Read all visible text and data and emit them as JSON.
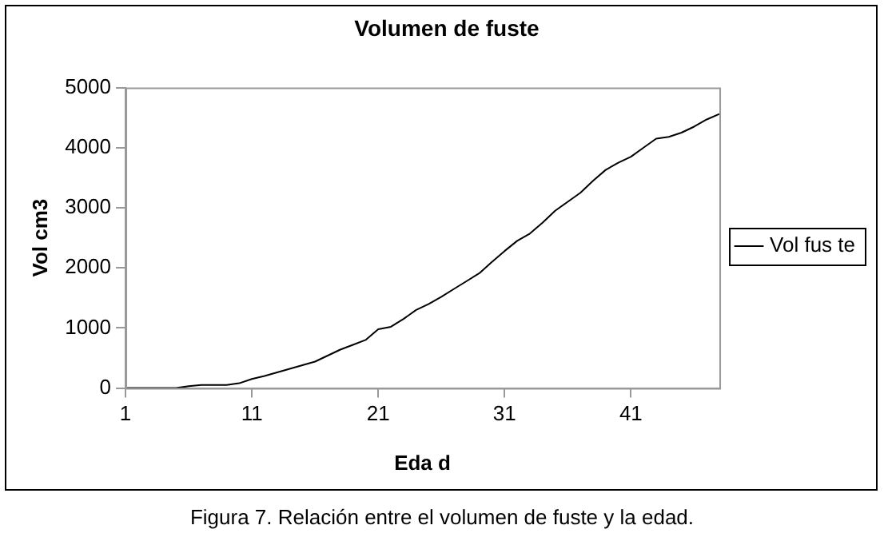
{
  "chart_data": {
    "type": "line",
    "title": "Volumen de fuste",
    "xlabel": "Eda d",
    "ylabel": "Vol cm3",
    "categories": [
      "1",
      null,
      null,
      null,
      null,
      null,
      null,
      null,
      null,
      null,
      "11",
      null,
      null,
      null,
      null,
      null,
      null,
      null,
      null,
      null,
      "21",
      null,
      null,
      null,
      null,
      null,
      null,
      null,
      null,
      null,
      "31",
      null,
      null,
      null,
      null,
      null,
      null,
      null,
      null,
      null,
      "41",
      null,
      null,
      null,
      null,
      null,
      null,
      null
    ],
    "series": [
      {
        "name": "Vol fus te",
        "color": "#000000",
        "values": [
          0,
          0,
          0,
          0,
          0,
          30,
          50,
          50,
          50,
          80,
          150,
          200,
          260,
          320,
          380,
          440,
          540,
          640,
          720,
          800,
          980,
          1020,
          1150,
          1300,
          1400,
          1520,
          1650,
          1780,
          1910,
          2100,
          2280,
          2450,
          2570,
          2750,
          2950,
          3100,
          3250,
          3450,
          3630,
          3750,
          3850,
          4000,
          4150,
          4180,
          4250,
          4350,
          4470,
          4560
        ]
      }
    ],
    "ylim": [
      0,
      5000
    ],
    "yticks": [
      0,
      1000,
      2000,
      3000,
      4000,
      5000
    ],
    "grid": false,
    "legend": "right",
    "marker": "none",
    "line_style": "solid",
    "annotations": [
      "Figura 7. Relación entre el volumen de fuste y la edad."
    ]
  }
}
